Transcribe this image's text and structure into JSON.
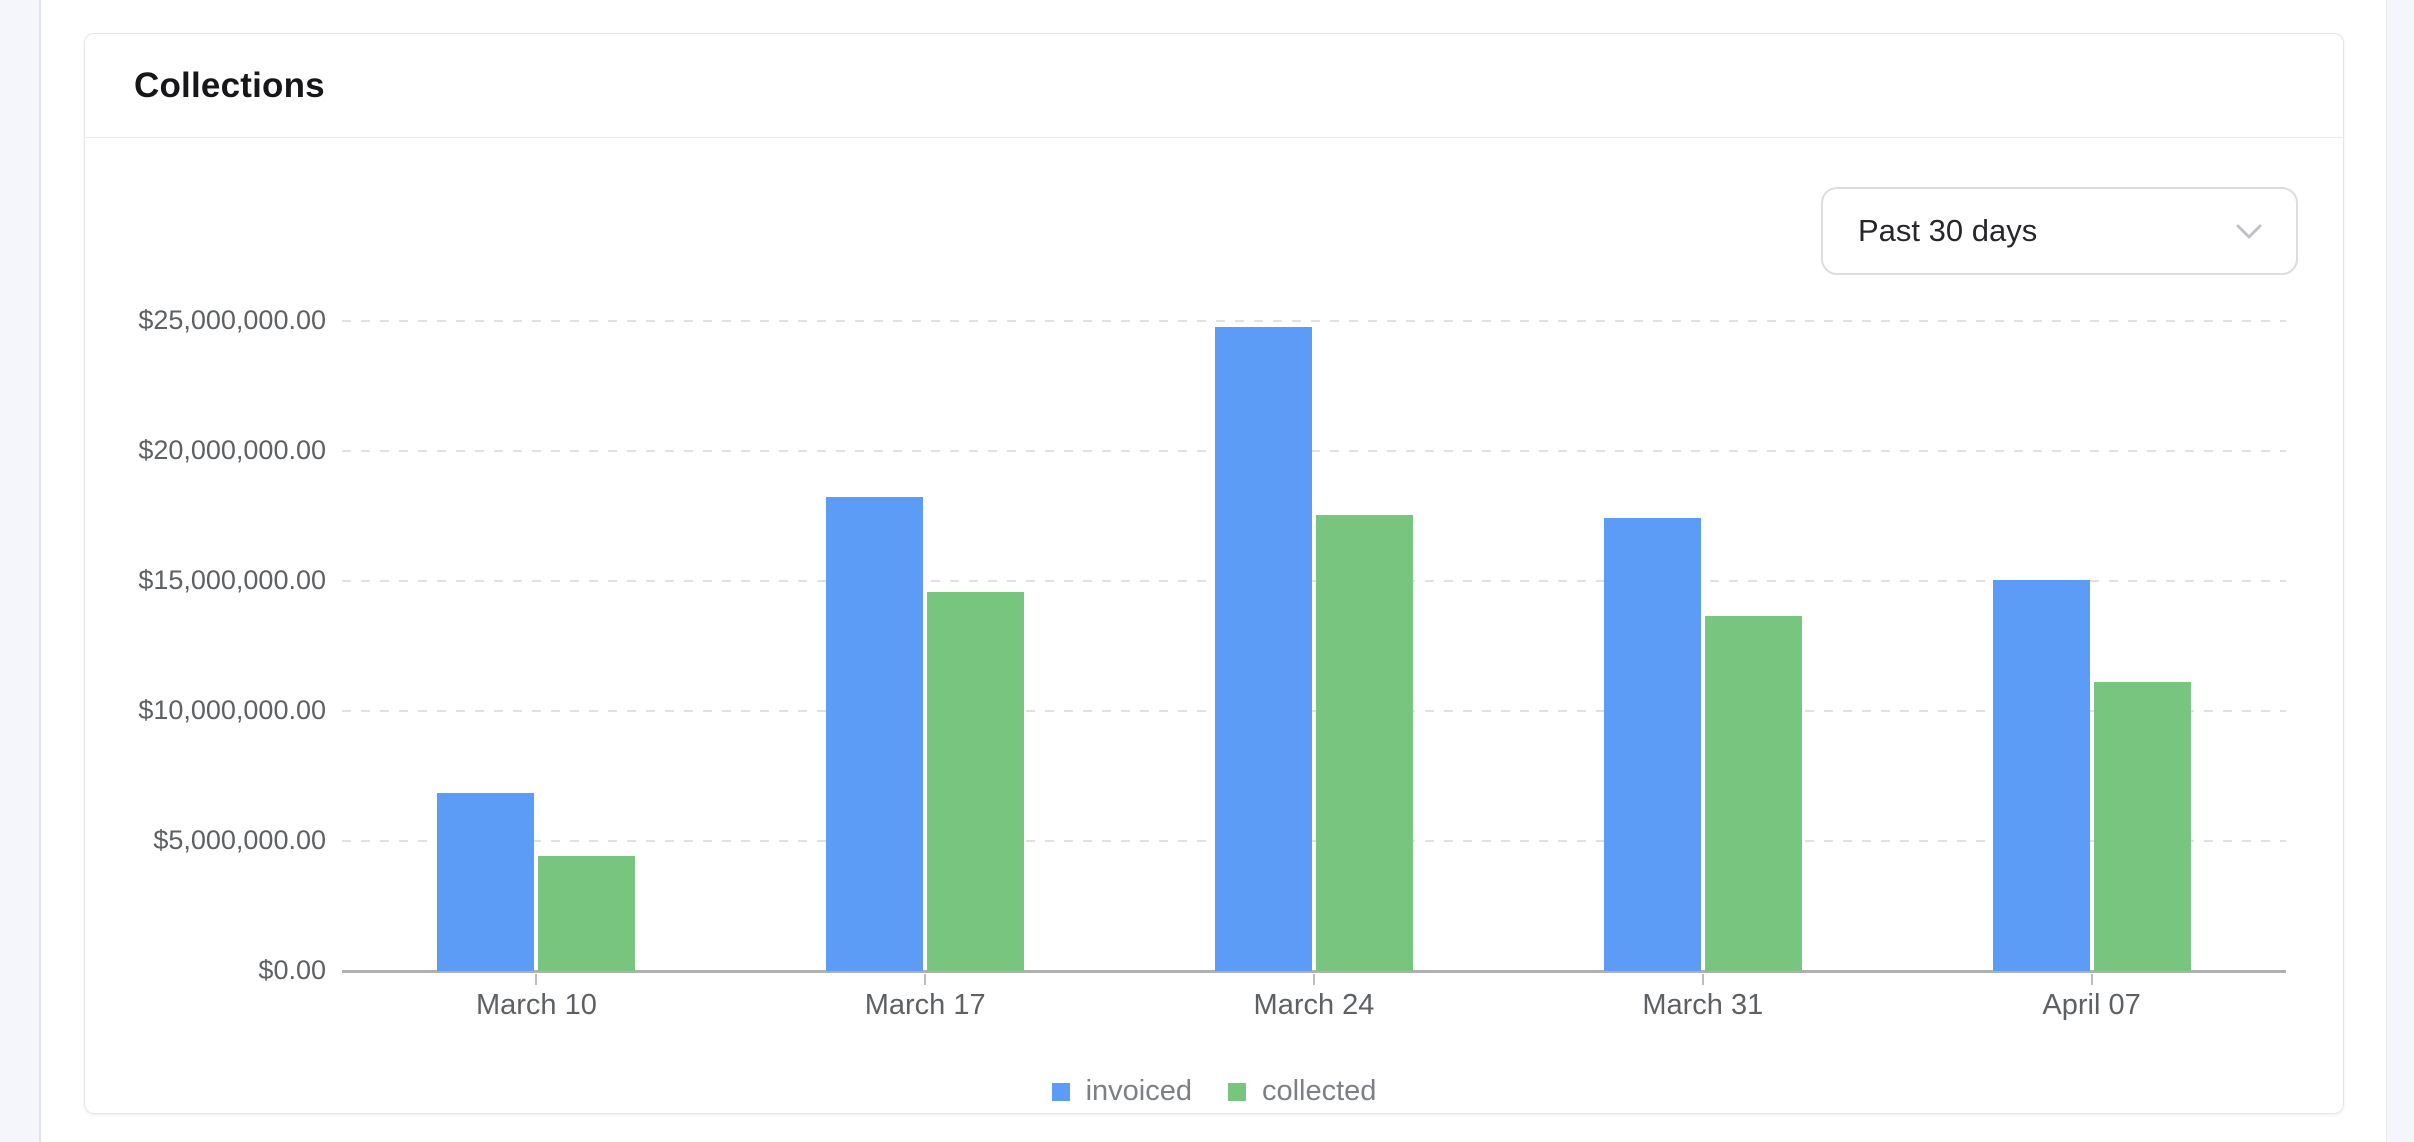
{
  "page": {
    "card_title": "Collections"
  },
  "controls": {
    "range_select": {
      "value": "Past 30 days"
    }
  },
  "chart_data": {
    "type": "bar",
    "title": "Collections",
    "categories": [
      "March 10",
      "March 17",
      "March 24",
      "March 31",
      "April 07"
    ],
    "series": [
      {
        "name": "invoiced",
        "color": "#5c9cf6",
        "values": [
          6860000,
          18220000,
          24780000,
          17410000,
          15030000
        ]
      },
      {
        "name": "collected",
        "color": "#77c57e",
        "values": [
          4430000,
          14560000,
          17530000,
          13640000,
          11130000
        ]
      }
    ],
    "y_ticks": [
      {
        "value": 0,
        "label": "$0.00"
      },
      {
        "value": 5000000,
        "label": "$5,000,000.00"
      },
      {
        "value": 10000000,
        "label": "$10,000,000.00"
      },
      {
        "value": 15000000,
        "label": "$15,000,000.00"
      },
      {
        "value": 20000000,
        "label": "$20,000,000.00"
      },
      {
        "value": 25000000,
        "label": "$25,000,000.00"
      }
    ],
    "ylim": [
      0,
      26500000
    ],
    "grid": "horizontal-dashed",
    "legend_position": "bottom-center",
    "currency_format": "$#,##0.00"
  }
}
